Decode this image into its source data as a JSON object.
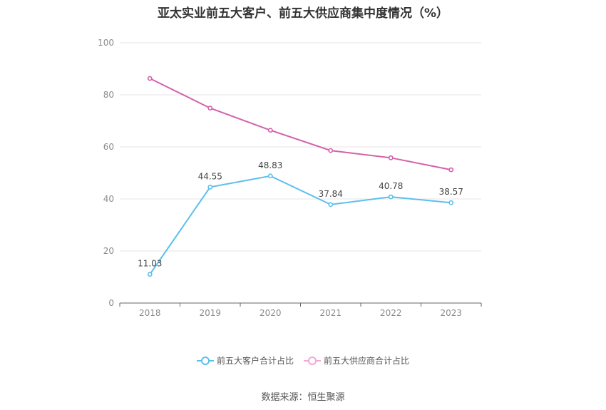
{
  "chart_data": {
    "type": "line",
    "title": "亚太实业前五大客户、前五大供应商集中度情况（%）",
    "categories": [
      "2018",
      "2019",
      "2020",
      "2021",
      "2022",
      "2023"
    ],
    "series": [
      {
        "name": "前五大客户合计占比",
        "color": "#5bbfee",
        "values": [
          11.03,
          44.55,
          48.83,
          37.84,
          40.78,
          38.57
        ],
        "data_labels": [
          "11.03",
          "44.55",
          "48.83",
          "37.84",
          "40.78",
          "38.57"
        ]
      },
      {
        "name": "前五大供应商合计占比",
        "color": "#d462aa",
        "values": [
          86.3,
          74.9,
          66.4,
          58.6,
          55.8,
          51.2
        ]
      }
    ],
    "ylim": [
      0,
      100
    ],
    "yticks": [
      "0",
      "20",
      "40",
      "60",
      "80",
      "100"
    ],
    "grid": true,
    "legend_position": "bottom"
  },
  "source_text": "数据来源：恒生聚源"
}
